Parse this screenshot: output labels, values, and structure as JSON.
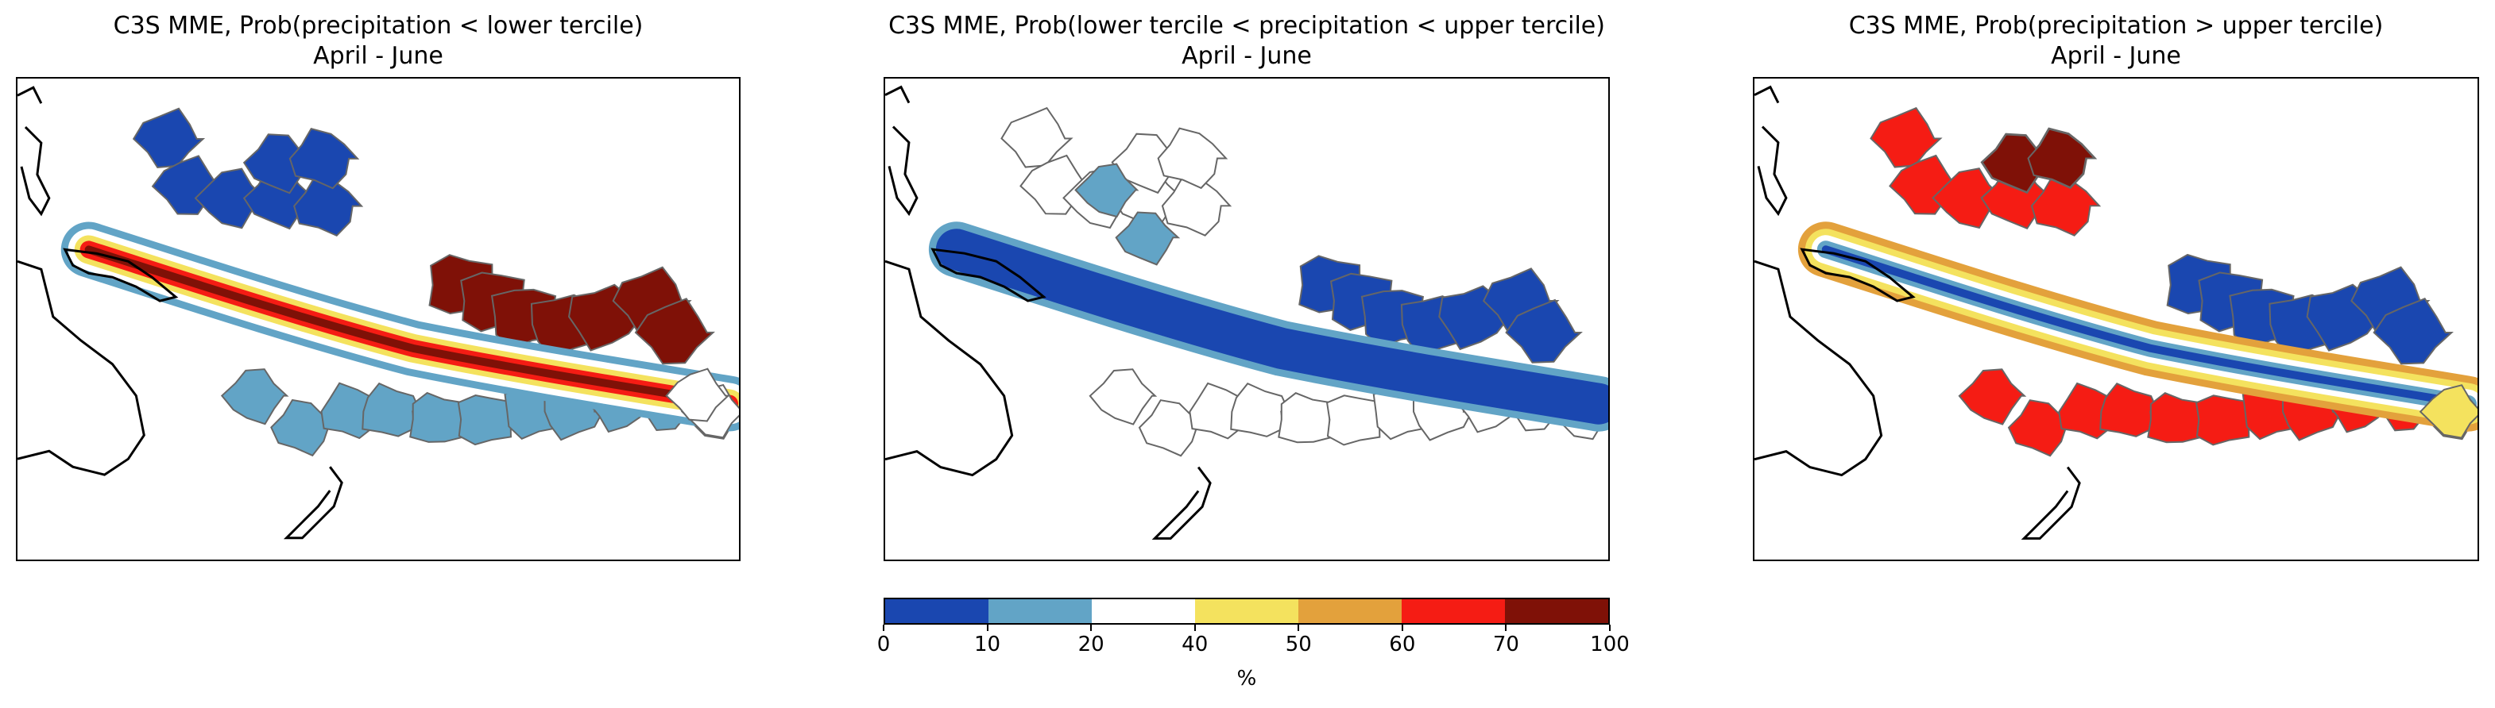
{
  "panels": [
    {
      "title": "C3S MME, Prob(precipitation < lower tercile)",
      "subtitle": "April - June",
      "variant": "below"
    },
    {
      "title": "C3S MME, Prob(lower tercile < precipitation < upper tercile)",
      "subtitle": "April - June",
      "variant": "normal"
    },
    {
      "title": "C3S MME, Prob(precipitation > upper tercile)",
      "subtitle": "April - June",
      "variant": "above"
    }
  ],
  "colorbar": {
    "label": "%",
    "ticks": [
      "0",
      "10",
      "20",
      "40",
      "50",
      "60",
      "70",
      "100"
    ],
    "bins": [
      {
        "range": "0-10",
        "color": "#1a47b0"
      },
      {
        "range": "10-20",
        "color": "#62a4c6"
      },
      {
        "range": "20-40",
        "color": "#ffffff"
      },
      {
        "range": "40-50",
        "color": "#f4e25e"
      },
      {
        "range": "50-60",
        "color": "#e3a13c"
      },
      {
        "range": "60-70",
        "color": "#f51c14"
      },
      {
        "range": "70-100",
        "color": "#7f1107"
      }
    ]
  },
  "colors": {
    "coastline": "#000000",
    "region_border": "#666666"
  }
}
